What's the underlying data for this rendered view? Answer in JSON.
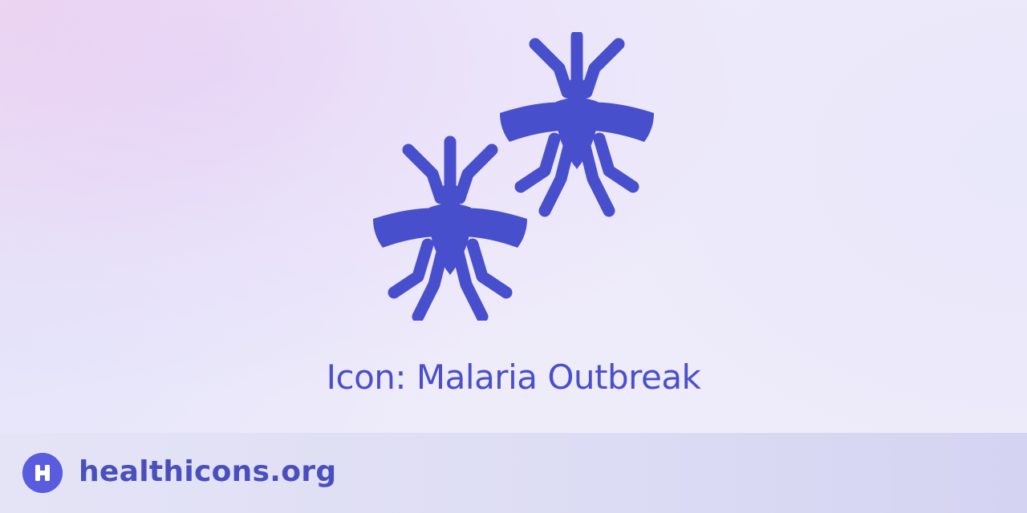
{
  "hero": {
    "icon_name": "malaria-outbreak-icon",
    "caption": "Icon: Malaria Outbreak"
  },
  "footer": {
    "logo_letter": "H",
    "site_name": "healthicons.org"
  },
  "colors": {
    "icon": "#474fcc",
    "caption": "#4a4fcb",
    "brand": "#5a5ce0",
    "footer_text": "#494fbd"
  }
}
